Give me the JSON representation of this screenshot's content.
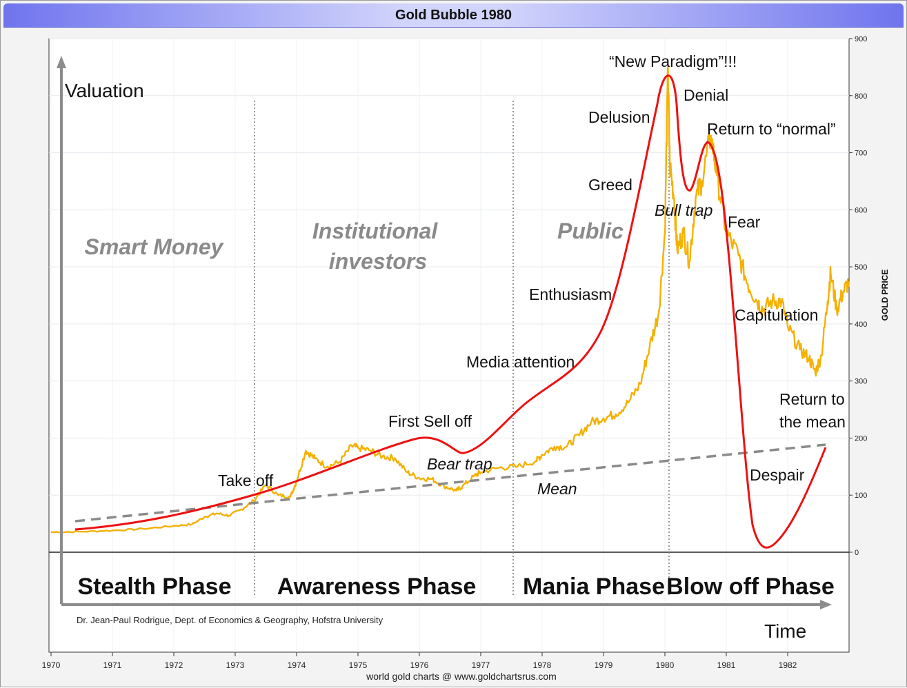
{
  "window": {
    "title": "Gold Bubble 1980"
  },
  "chart_data": {
    "type": "line",
    "title": "Gold Bubble 1980",
    "ylabel": "GOLD PRICE",
    "ylim": [
      0,
      900
    ],
    "y_ticks": [
      0,
      100,
      200,
      300,
      400,
      500,
      600,
      700,
      800,
      900
    ],
    "x_ticks": [
      "1970",
      "1971",
      "1972",
      "1973",
      "1974",
      "1975",
      "1976",
      "1977",
      "1978",
      "1979",
      "1980",
      "1981",
      "1982"
    ],
    "x_range": [
      1970.0,
      1983.0
    ],
    "grid": true,
    "footer": "world gold charts @ www.goldchartsrus.com",
    "series": [
      {
        "color": "#f5b000",
        "points": [
          [
            1970.0,
            35
          ],
          [
            1970.5,
            36
          ],
          [
            1971.0,
            38
          ],
          [
            1971.5,
            41
          ],
          [
            1972.0,
            46
          ],
          [
            1972.3,
            49
          ],
          [
            1972.5,
            62
          ],
          [
            1972.7,
            68
          ],
          [
            1972.9,
            64
          ],
          [
            1973.1,
            75
          ],
          [
            1973.3,
            90
          ],
          [
            1973.5,
            118
          ],
          [
            1973.7,
            100
          ],
          [
            1973.9,
            97
          ],
          [
            1974.0,
            125
          ],
          [
            1974.15,
            178
          ],
          [
            1974.3,
            164
          ],
          [
            1974.5,
            150
          ],
          [
            1974.7,
            158
          ],
          [
            1974.9,
            186
          ],
          [
            1975.0,
            183
          ],
          [
            1975.2,
            178
          ],
          [
            1975.4,
            168
          ],
          [
            1975.6,
            165
          ],
          [
            1975.8,
            140
          ],
          [
            1976.0,
            130
          ],
          [
            1976.2,
            128
          ],
          [
            1976.4,
            116
          ],
          [
            1976.6,
            108
          ],
          [
            1976.7,
            115
          ],
          [
            1976.9,
            134
          ],
          [
            1977.0,
            140
          ],
          [
            1977.3,
            148
          ],
          [
            1977.6,
            150
          ],
          [
            1977.9,
            160
          ],
          [
            1978.0,
            171
          ],
          [
            1978.2,
            185
          ],
          [
            1978.4,
            185
          ],
          [
            1978.6,
            205
          ],
          [
            1978.8,
            228
          ],
          [
            1979.0,
            235
          ],
          [
            1979.2,
            242
          ],
          [
            1979.4,
            262
          ],
          [
            1979.6,
            295
          ],
          [
            1979.75,
            360
          ],
          [
            1979.9,
            420
          ],
          [
            1980.0,
            560
          ],
          [
            1980.05,
            850
          ],
          [
            1980.08,
            680
          ],
          [
            1980.15,
            620
          ],
          [
            1980.2,
            530
          ],
          [
            1980.3,
            560
          ],
          [
            1980.4,
            510
          ],
          [
            1980.5,
            620
          ],
          [
            1980.6,
            650
          ],
          [
            1980.75,
            730
          ],
          [
            1980.85,
            660
          ],
          [
            1981.0,
            560
          ],
          [
            1981.2,
            520
          ],
          [
            1981.35,
            470
          ],
          [
            1981.5,
            440
          ],
          [
            1981.6,
            425
          ],
          [
            1981.75,
            440
          ],
          [
            1981.9,
            440
          ],
          [
            1982.0,
            395
          ],
          [
            1982.2,
            355
          ],
          [
            1982.35,
            340
          ],
          [
            1982.45,
            315
          ],
          [
            1982.55,
            345
          ],
          [
            1982.65,
            440
          ],
          [
            1982.7,
            490
          ],
          [
            1982.8,
            425
          ],
          [
            1982.9,
            455
          ],
          [
            1983.0,
            475
          ]
        ]
      }
    ],
    "overlay": {
      "curve_color": "#ee1111",
      "mean_color": "#888888",
      "y_axis_label": "Valuation",
      "x_axis_label": "Time",
      "phases": [
        "Stealth Phase",
        "Awareness Phase",
        "Mania Phase",
        "Blow off Phase"
      ],
      "regions": [
        "Smart Money",
        "Institutional investors",
        "Public"
      ],
      "annotations": [
        "Take off",
        "First Sell off",
        "Bear trap",
        "Mean",
        "Media attention",
        "Enthusiasm",
        "Greed",
        "Delusion",
        "“New Paradigm”!!!",
        "Denial",
        "Return to “normal”",
        "Bull trap",
        "Fear",
        "Capitulation",
        "Return to",
        "the mean",
        "Despair"
      ],
      "credit": "Dr. Jean-Paul Rodrigue, Dept. of Economics & Geography, Hofstra University"
    }
  }
}
